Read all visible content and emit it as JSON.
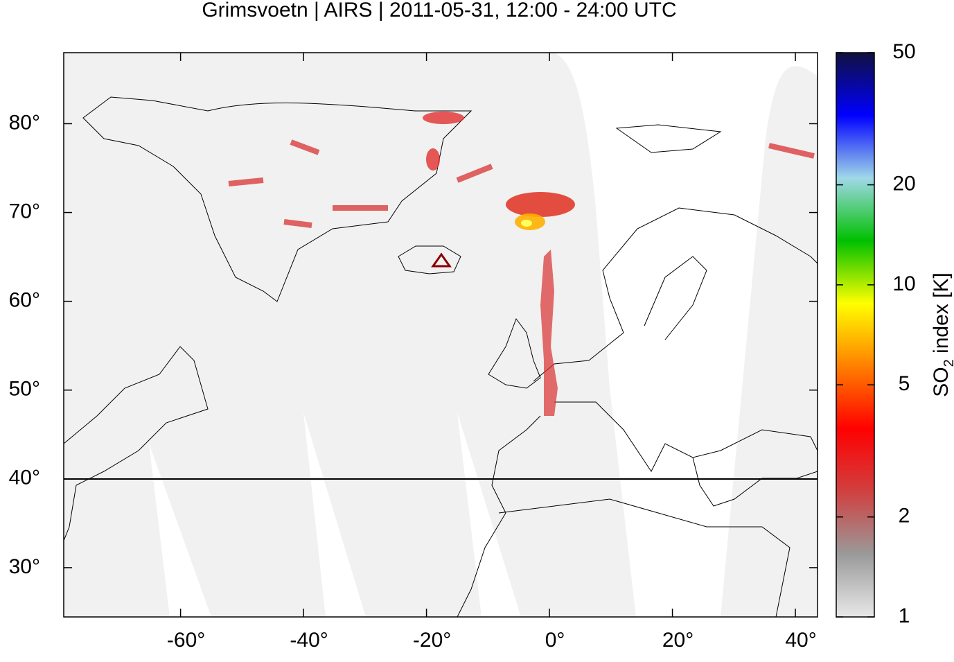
{
  "chart_data": {
    "type": "map",
    "title": "Grimsvoetn | AIRS | 2011-05-31, 12:00 - 24:00 UTC",
    "xlim": [
      -79,
      43.6
    ],
    "ylim": [
      24.45,
      88
    ],
    "xticks": [
      {
        "value": -60,
        "label": "-60°"
      },
      {
        "value": -40,
        "label": "-40°"
      },
      {
        "value": -20,
        "label": "-20°"
      },
      {
        "value": 0,
        "label": "0°"
      },
      {
        "value": 20,
        "label": "20°"
      },
      {
        "value": 40,
        "label": "40°"
      }
    ],
    "yticks": [
      {
        "value": 30,
        "label": "30°"
      },
      {
        "value": 40,
        "label": "40°"
      },
      {
        "value": 50,
        "label": "50°"
      },
      {
        "value": 60,
        "label": "60°"
      },
      {
        "value": 70,
        "label": "70°"
      },
      {
        "value": 80,
        "label": "80°"
      }
    ],
    "colorbar": {
      "label_parts": [
        "SO",
        "2",
        " index [K]"
      ],
      "log_scale": true,
      "lim": [
        1,
        50
      ],
      "ticks": [
        1,
        2,
        5,
        10,
        20,
        50
      ],
      "colors": [
        "#e8e8e8",
        "#9a9a9a",
        "#d04040",
        "#ff0000",
        "#ff8000",
        "#ffff00",
        "#00c000",
        "#a0d8e8",
        "#0000ff",
        "#101040"
      ]
    }
  }
}
